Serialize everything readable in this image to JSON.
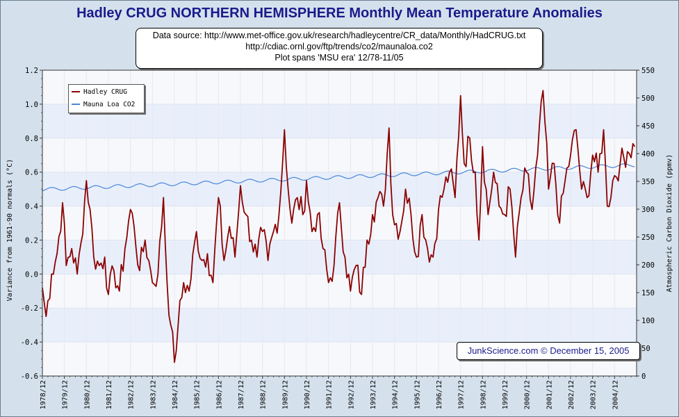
{
  "title": "Hadley CRUG NORTHERN HEMISPHERE Monthly Mean Temperature Anomalies",
  "source_lines": [
    "Data source: http://www.met-office.gov.uk/research/hadleycentre/CR_data/Monthly/HadCRUG.txt",
    "http://cdiac.ornl.gov/ftp/trends/co2/maunaloa.co2",
    "Plot spans 'MSU era' 12/78-11/05"
  ],
  "credit": "JunkScience.com © December 15, 2005",
  "colors": {
    "temp": "#8b0000",
    "co2": "#4a86d8",
    "background": "#d4e1ec",
    "band": "#e8effb",
    "plot": "#f7f8fb"
  },
  "chart_data": {
    "type": "line",
    "title": "Hadley CRUG NORTHERN HEMISPHERE Monthly Mean Temperature Anomalies",
    "ylabel": "Variance from 1961-90 normals (°C)",
    "y2label": "Atmospheric Carbon Dioxide (ppmv)",
    "ylim": [
      -0.6,
      1.2
    ],
    "y2lim": [
      0,
      550
    ],
    "yticks": [
      "-0.6",
      "-0.4",
      "-0.2",
      "0.0",
      "0.2",
      "0.4",
      "0.6",
      "0.8",
      "1.0",
      "1.2"
    ],
    "y2ticks": [
      "0",
      "50",
      "100",
      "150",
      "200",
      "250",
      "300",
      "350",
      "400",
      "450",
      "500",
      "550"
    ],
    "xticks": [
      "1978/12",
      "1979/12",
      "1980/12",
      "1981/12",
      "1982/12",
      "1983/12",
      "1984/12",
      "1985/12",
      "1986/12",
      "1987/12",
      "1988/12",
      "1989/12",
      "1990/12",
      "1991/12",
      "1992/12",
      "1993/12",
      "1994/12",
      "1995/12",
      "1996/12",
      "1997/12",
      "1998/12",
      "1999/12",
      "2000/12",
      "2001/12",
      "2002/12",
      "2003/12",
      "2004/12"
    ],
    "grid": true,
    "legend_position": "top-left",
    "series": [
      {
        "name": "Hadley CRUG",
        "axis": "left",
        "color": "#8b0000",
        "x_start": "1978/12",
        "frequency": "monthly",
        "keypoints": [
          [
            "1978/12",
            -0.08
          ],
          [
            "1979/02",
            -0.25
          ],
          [
            "1979/05",
            0.0
          ],
          [
            "1979/08",
            0.12
          ],
          [
            "1979/11",
            0.42
          ],
          [
            "1980/01",
            0.05
          ],
          [
            "1980/04",
            0.15
          ],
          [
            "1980/07",
            0.0
          ],
          [
            "1980/09",
            0.18
          ],
          [
            "1980/12",
            0.55
          ],
          [
            "1981/02",
            0.38
          ],
          [
            "1981/04",
            0.1
          ],
          [
            "1981/07",
            0.05
          ],
          [
            "1981/10",
            0.1
          ],
          [
            "1981/12",
            -0.12
          ],
          [
            "1982/03",
            0.02
          ],
          [
            "1982/06",
            -0.1
          ],
          [
            "1982/09",
            0.15
          ],
          [
            "1982/12",
            0.38
          ],
          [
            "1983/02",
            0.28
          ],
          [
            "1983/05",
            0.02
          ],
          [
            "1983/08",
            0.2
          ],
          [
            "1983/10",
            0.08
          ],
          [
            "1983/12",
            -0.05
          ],
          [
            "1984/03",
            0.0
          ],
          [
            "1984/06",
            0.45
          ],
          [
            "1984/08",
            -0.05
          ],
          [
            "1984/10",
            -0.3
          ],
          [
            "1984/12",
            -0.52
          ],
          [
            "1985/02",
            -0.3
          ],
          [
            "1985/05",
            -0.05
          ],
          [
            "1985/08",
            -0.1
          ],
          [
            "1985/12",
            0.25
          ],
          [
            "1986/03",
            0.08
          ],
          [
            "1986/06",
            0.12
          ],
          [
            "1986/09",
            -0.05
          ],
          [
            "1986/12",
            0.45
          ],
          [
            "1987/03",
            0.08
          ],
          [
            "1987/06",
            0.28
          ],
          [
            "1987/09",
            0.1
          ],
          [
            "1987/12",
            0.52
          ],
          [
            "1988/03",
            0.35
          ],
          [
            "1988/06",
            0.2
          ],
          [
            "1988/09",
            0.1
          ],
          [
            "1988/12",
            0.25
          ],
          [
            "1989/03",
            0.08
          ],
          [
            "1989/06",
            0.25
          ],
          [
            "1989/09",
            0.35
          ],
          [
            "1989/12",
            0.85
          ],
          [
            "1990/02",
            0.5
          ],
          [
            "1990/04",
            0.3
          ],
          [
            "1990/07",
            0.45
          ],
          [
            "1990/10",
            0.35
          ],
          [
            "1990/12",
            0.55
          ],
          [
            "1991/03",
            0.25
          ],
          [
            "1991/06",
            0.35
          ],
          [
            "1991/09",
            0.15
          ],
          [
            "1991/12",
            -0.05
          ],
          [
            "1992/03",
            0.05
          ],
          [
            "1992/06",
            0.42
          ],
          [
            "1992/09",
            0.1
          ],
          [
            "1992/12",
            -0.1
          ],
          [
            "1993/03",
            0.05
          ],
          [
            "1993/06",
            -0.12
          ],
          [
            "1993/09",
            0.2
          ],
          [
            "1993/12",
            0.35
          ],
          [
            "1994/03",
            0.45
          ],
          [
            "1994/06",
            0.4
          ],
          [
            "1994/09",
            0.86
          ],
          [
            "1994/11",
            0.35
          ],
          [
            "1995/03",
            0.25
          ],
          [
            "1995/06",
            0.5
          ],
          [
            "1995/09",
            0.35
          ],
          [
            "1995/12",
            0.1
          ],
          [
            "1996/03",
            0.35
          ],
          [
            "1996/06",
            0.15
          ],
          [
            "1996/09",
            0.1
          ],
          [
            "1996/12",
            0.38
          ],
          [
            "1997/03",
            0.5
          ],
          [
            "1997/06",
            0.6
          ],
          [
            "1997/09",
            0.45
          ],
          [
            "1997/12",
            1.05
          ],
          [
            "1998/02",
            0.65
          ],
          [
            "1998/05",
            0.8
          ],
          [
            "1998/08",
            0.6
          ],
          [
            "1998/10",
            0.2
          ],
          [
            "1998/12",
            0.75
          ],
          [
            "1999/03",
            0.35
          ],
          [
            "1999/06",
            0.6
          ],
          [
            "1999/09",
            0.4
          ],
          [
            "1999/12",
            0.35
          ],
          [
            "2000/03",
            0.5
          ],
          [
            "2000/06",
            0.1
          ],
          [
            "2000/09",
            0.45
          ],
          [
            "2000/12",
            0.6
          ],
          [
            "2001/03",
            0.38
          ],
          [
            "2001/06",
            0.7
          ],
          [
            "2001/09",
            1.08
          ],
          [
            "2001/12",
            0.5
          ],
          [
            "2002/03",
            0.65
          ],
          [
            "2002/06",
            0.3
          ],
          [
            "2002/09",
            0.55
          ],
          [
            "2002/12",
            0.7
          ],
          [
            "2003/03",
            0.85
          ],
          [
            "2003/06",
            0.5
          ],
          [
            "2003/09",
            0.45
          ],
          [
            "2003/12",
            0.7
          ],
          [
            "2004/03",
            0.6
          ],
          [
            "2004/06",
            0.85
          ],
          [
            "2004/08",
            0.4
          ],
          [
            "2004/11",
            0.55
          ],
          [
            "2005/03",
            0.65
          ],
          [
            "2005/07",
            0.72
          ],
          [
            "2005/11",
            0.75
          ]
        ]
      },
      {
        "name": "Mauna Loa CO2",
        "axis": "right",
        "color": "#4a86d8",
        "x_start": "1978/12",
        "frequency": "monthly",
        "start_value": 335.5,
        "end_value": 379.5,
        "seasonal_amplitude": 3.0
      }
    ]
  }
}
